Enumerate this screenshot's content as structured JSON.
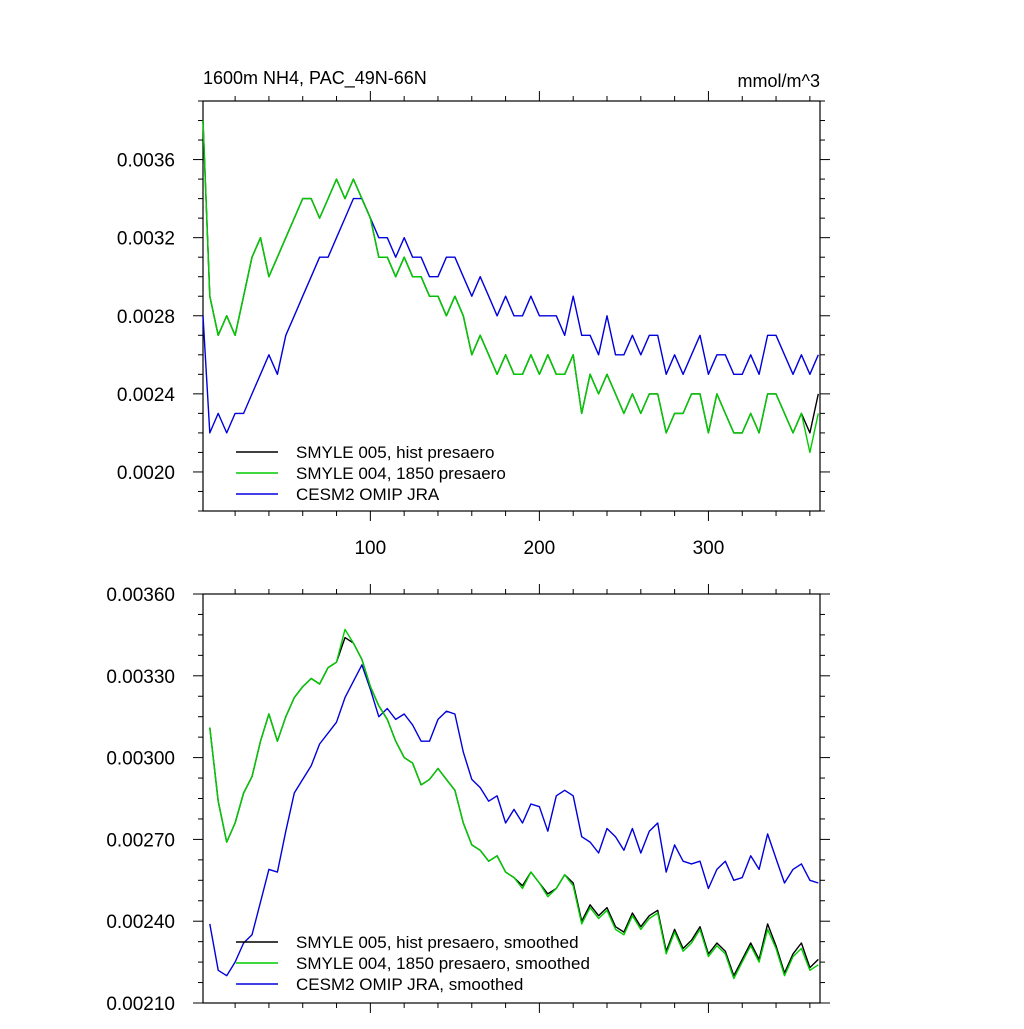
{
  "chart_data": [
    {
      "type": "line",
      "title": "1600m NH4, PAC_49N-66N",
      "units": "mmol/m^3",
      "xlabel": "",
      "ylabel": "",
      "xlim": [
        1,
        366
      ],
      "ylim": [
        0.0018,
        0.0039
      ],
      "xticks": [
        100,
        200,
        300
      ],
      "yticks": [
        0.002,
        0.0024,
        0.0028,
        0.0032,
        0.0036
      ],
      "ytick_labels": [
        "0.0020",
        "0.0024",
        "0.0028",
        "0.0032",
        "0.0036"
      ],
      "legend_position": "bottom-left",
      "series": [
        {
          "name": "SMYLE 005, hist presaero",
          "color": "#000000",
          "x": [
            1,
            5,
            10,
            15,
            20,
            25,
            30,
            35,
            40,
            45,
            50,
            55,
            60,
            65,
            70,
            75,
            80,
            85,
            90,
            95,
            100,
            105,
            110,
            115,
            120,
            125,
            130,
            135,
            140,
            145,
            150,
            155,
            160,
            165,
            170,
            175,
            180,
            185,
            190,
            195,
            200,
            205,
            210,
            215,
            220,
            225,
            230,
            235,
            240,
            245,
            250,
            255,
            260,
            265,
            270,
            275,
            280,
            285,
            290,
            295,
            300,
            305,
            310,
            315,
            320,
            325,
            330,
            335,
            340,
            345,
            350,
            355,
            360,
            365
          ],
          "y": [
            0.0038,
            0.0029,
            0.0027,
            0.0028,
            0.0027,
            0.0029,
            0.0031,
            0.0032,
            0.003,
            0.0031,
            0.0032,
            0.0033,
            0.0034,
            0.0034,
            0.0033,
            0.0034,
            0.0035,
            0.0034,
            0.0035,
            0.0034,
            0.0033,
            0.0031,
            0.0031,
            0.003,
            0.0031,
            0.003,
            0.003,
            0.0029,
            0.0029,
            0.0028,
            0.0029,
            0.0028,
            0.0026,
            0.0027,
            0.0026,
            0.0025,
            0.0026,
            0.0025,
            0.0025,
            0.0026,
            0.0025,
            0.0026,
            0.0025,
            0.0025,
            0.0026,
            0.0023,
            0.0025,
            0.0024,
            0.0025,
            0.0024,
            0.0023,
            0.0024,
            0.0023,
            0.0024,
            0.0024,
            0.0022,
            0.0023,
            0.0023,
            0.0024,
            0.0024,
            0.0022,
            0.0024,
            0.0023,
            0.0022,
            0.0022,
            0.0023,
            0.0022,
            0.0024,
            0.0024,
            0.0023,
            0.0022,
            0.0023,
            0.0022,
            0.0024
          ]
        },
        {
          "name": "SMYLE 004, 1850 presaero",
          "color": "#00cc00",
          "x": [
            1,
            5,
            10,
            15,
            20,
            25,
            30,
            35,
            40,
            45,
            50,
            55,
            60,
            65,
            70,
            75,
            80,
            85,
            90,
            95,
            100,
            105,
            110,
            115,
            120,
            125,
            130,
            135,
            140,
            145,
            150,
            155,
            160,
            165,
            170,
            175,
            180,
            185,
            190,
            195,
            200,
            205,
            210,
            215,
            220,
            225,
            230,
            235,
            240,
            245,
            250,
            255,
            260,
            265,
            270,
            275,
            280,
            285,
            290,
            295,
            300,
            305,
            310,
            315,
            320,
            325,
            330,
            335,
            340,
            345,
            350,
            355,
            360,
            365
          ],
          "y": [
            0.0038,
            0.0029,
            0.0027,
            0.0028,
            0.0027,
            0.0029,
            0.0031,
            0.0032,
            0.003,
            0.0031,
            0.0032,
            0.0033,
            0.0034,
            0.0034,
            0.0033,
            0.0034,
            0.0035,
            0.0034,
            0.0035,
            0.0034,
            0.0033,
            0.0031,
            0.0031,
            0.003,
            0.0031,
            0.003,
            0.003,
            0.0029,
            0.0029,
            0.0028,
            0.0029,
            0.0028,
            0.0026,
            0.0027,
            0.0026,
            0.0025,
            0.0026,
            0.0025,
            0.0025,
            0.0026,
            0.0025,
            0.0026,
            0.0025,
            0.0025,
            0.0026,
            0.0023,
            0.0025,
            0.0024,
            0.0025,
            0.0024,
            0.0023,
            0.0024,
            0.0023,
            0.0024,
            0.0024,
            0.0022,
            0.0023,
            0.0023,
            0.0024,
            0.0024,
            0.0022,
            0.0024,
            0.0023,
            0.0022,
            0.0022,
            0.0023,
            0.0022,
            0.0024,
            0.0024,
            0.0023,
            0.0022,
            0.0023,
            0.0021,
            0.0023
          ]
        },
        {
          "name": "CESM2 OMIP JRA",
          "color": "#0000dd",
          "x": [
            1,
            5,
            10,
            15,
            20,
            25,
            30,
            35,
            40,
            45,
            50,
            55,
            60,
            65,
            70,
            75,
            80,
            85,
            90,
            95,
            100,
            105,
            110,
            115,
            120,
            125,
            130,
            135,
            140,
            145,
            150,
            155,
            160,
            165,
            170,
            175,
            180,
            185,
            190,
            195,
            200,
            205,
            210,
            215,
            220,
            225,
            230,
            235,
            240,
            245,
            250,
            255,
            260,
            265,
            270,
            275,
            280,
            285,
            290,
            295,
            300,
            305,
            310,
            315,
            320,
            325,
            330,
            335,
            340,
            345,
            350,
            355,
            360,
            365
          ],
          "y": [
            0.0028,
            0.0022,
            0.0023,
            0.0022,
            0.0023,
            0.0023,
            0.0024,
            0.0025,
            0.0026,
            0.0025,
            0.0027,
            0.0028,
            0.0029,
            0.003,
            0.0031,
            0.0031,
            0.0032,
            0.0033,
            0.0034,
            0.0034,
            0.0033,
            0.0032,
            0.0032,
            0.0031,
            0.0032,
            0.0031,
            0.0031,
            0.003,
            0.003,
            0.0031,
            0.0031,
            0.003,
            0.0029,
            0.003,
            0.0029,
            0.0028,
            0.0029,
            0.0028,
            0.0028,
            0.0029,
            0.0028,
            0.0028,
            0.0028,
            0.0027,
            0.0029,
            0.0027,
            0.0027,
            0.0026,
            0.0028,
            0.0026,
            0.0026,
            0.0027,
            0.0026,
            0.0027,
            0.0027,
            0.0025,
            0.0026,
            0.0025,
            0.0026,
            0.0027,
            0.0025,
            0.0026,
            0.0026,
            0.0025,
            0.0025,
            0.0026,
            0.0025,
            0.0027,
            0.0027,
            0.0026,
            0.0025,
            0.0026,
            0.0025,
            0.0026
          ]
        }
      ]
    },
    {
      "type": "line",
      "title": "",
      "xlabel": "",
      "ylabel": "",
      "xlim": [
        1,
        366
      ],
      "ylim": [
        0.0021,
        0.0036
      ],
      "xticks": [
        100,
        200,
        300
      ],
      "yticks": [
        0.0021,
        0.0024,
        0.0027,
        0.003,
        0.0033,
        0.0036
      ],
      "ytick_labels": [
        "0.00210",
        "0.00240",
        "0.00270",
        "0.00300",
        "0.00330",
        "0.00360"
      ],
      "legend_position": "bottom-left",
      "series": [
        {
          "name": "SMYLE 005, hist presaero, smoothed",
          "color": "#000000",
          "x": [
            5,
            10,
            15,
            20,
            25,
            30,
            35,
            40,
            45,
            50,
            55,
            60,
            65,
            70,
            75,
            80,
            85,
            90,
            95,
            100,
            105,
            110,
            115,
            120,
            125,
            130,
            135,
            140,
            145,
            150,
            155,
            160,
            165,
            170,
            175,
            180,
            185,
            190,
            195,
            200,
            205,
            210,
            215,
            220,
            225,
            230,
            235,
            240,
            245,
            250,
            255,
            260,
            265,
            270,
            275,
            280,
            285,
            290,
            295,
            300,
            305,
            310,
            315,
            320,
            325,
            330,
            335,
            340,
            345,
            350,
            355,
            360,
            365
          ],
          "y": [
            0.00311,
            0.00284,
            0.00269,
            0.00276,
            0.00287,
            0.00293,
            0.00306,
            0.00316,
            0.00306,
            0.00315,
            0.00322,
            0.00326,
            0.00329,
            0.00327,
            0.00333,
            0.00335,
            0.00344,
            0.00342,
            0.00336,
            0.00326,
            0.00319,
            0.00314,
            0.00306,
            0.003,
            0.00298,
            0.0029,
            0.00292,
            0.00296,
            0.00292,
            0.00288,
            0.00276,
            0.00268,
            0.00266,
            0.00262,
            0.00264,
            0.00258,
            0.00256,
            0.00253,
            0.00258,
            0.00254,
            0.0025,
            0.00252,
            0.00257,
            0.00254,
            0.0024,
            0.00246,
            0.00242,
            0.00245,
            0.00238,
            0.00236,
            0.00243,
            0.00238,
            0.00242,
            0.00244,
            0.00229,
            0.00237,
            0.0023,
            0.00233,
            0.00238,
            0.00228,
            0.00232,
            0.00229,
            0.0022,
            0.00226,
            0.00232,
            0.00226,
            0.00239,
            0.00231,
            0.00221,
            0.00228,
            0.00232,
            0.00223,
            0.00226
          ]
        },
        {
          "name": "SMYLE 004, 1850 presaero, smoothed",
          "color": "#00cc00",
          "x": [
            5,
            10,
            15,
            20,
            25,
            30,
            35,
            40,
            45,
            50,
            55,
            60,
            65,
            70,
            75,
            80,
            85,
            90,
            95,
            100,
            105,
            110,
            115,
            120,
            125,
            130,
            135,
            140,
            145,
            150,
            155,
            160,
            165,
            170,
            175,
            180,
            185,
            190,
            195,
            200,
            205,
            210,
            215,
            220,
            225,
            230,
            235,
            240,
            245,
            250,
            255,
            260,
            265,
            270,
            275,
            280,
            285,
            290,
            295,
            300,
            305,
            310,
            315,
            320,
            325,
            330,
            335,
            340,
            345,
            350,
            355,
            360,
            365
          ],
          "y": [
            0.00311,
            0.00284,
            0.00269,
            0.00276,
            0.00287,
            0.00293,
            0.00306,
            0.00316,
            0.00306,
            0.00315,
            0.00322,
            0.00326,
            0.00329,
            0.00327,
            0.00333,
            0.00335,
            0.00347,
            0.00342,
            0.00336,
            0.00326,
            0.00319,
            0.00314,
            0.00306,
            0.003,
            0.00298,
            0.0029,
            0.00292,
            0.00296,
            0.00292,
            0.00288,
            0.00276,
            0.00268,
            0.00266,
            0.00262,
            0.00264,
            0.00258,
            0.00256,
            0.00252,
            0.00258,
            0.00254,
            0.00249,
            0.00252,
            0.00257,
            0.00253,
            0.00239,
            0.00245,
            0.00241,
            0.00244,
            0.00237,
            0.00235,
            0.00242,
            0.00237,
            0.00241,
            0.00243,
            0.00228,
            0.00236,
            0.00229,
            0.00232,
            0.00237,
            0.00227,
            0.00231,
            0.00228,
            0.00219,
            0.00225,
            0.00231,
            0.00225,
            0.00237,
            0.0023,
            0.0022,
            0.00227,
            0.0023,
            0.00222,
            0.00224
          ]
        },
        {
          "name": "CESM2 OMIP JRA, smoothed",
          "color": "#0000dd",
          "x": [
            5,
            10,
            15,
            20,
            25,
            30,
            35,
            40,
            45,
            50,
            55,
            60,
            65,
            70,
            75,
            80,
            85,
            90,
            95,
            100,
            105,
            110,
            115,
            120,
            125,
            130,
            135,
            140,
            145,
            150,
            155,
            160,
            165,
            170,
            175,
            180,
            185,
            190,
            195,
            200,
            205,
            210,
            215,
            220,
            225,
            230,
            235,
            240,
            245,
            250,
            255,
            260,
            265,
            270,
            275,
            280,
            285,
            290,
            295,
            300,
            305,
            310,
            315,
            320,
            325,
            330,
            335,
            340,
            345,
            350,
            355,
            360,
            365
          ],
          "y": [
            0.00239,
            0.00222,
            0.0022,
            0.00225,
            0.00232,
            0.00235,
            0.00247,
            0.00259,
            0.00258,
            0.00273,
            0.00287,
            0.00292,
            0.00297,
            0.00305,
            0.00309,
            0.00313,
            0.00322,
            0.00328,
            0.00334,
            0.00325,
            0.00315,
            0.00318,
            0.00314,
            0.00316,
            0.00312,
            0.00306,
            0.00306,
            0.00314,
            0.00317,
            0.00316,
            0.00302,
            0.00292,
            0.00289,
            0.00284,
            0.00286,
            0.00276,
            0.00281,
            0.00276,
            0.00283,
            0.00282,
            0.00273,
            0.00286,
            0.00288,
            0.00286,
            0.00271,
            0.00269,
            0.00265,
            0.00274,
            0.00271,
            0.00266,
            0.00274,
            0.00265,
            0.00273,
            0.00276,
            0.00258,
            0.00268,
            0.00262,
            0.00261,
            0.00262,
            0.00252,
            0.00259,
            0.00262,
            0.00255,
            0.00256,
            0.00264,
            0.00259,
            0.00272,
            0.00263,
            0.00254,
            0.00259,
            0.00261,
            0.00255,
            0.00254
          ]
        }
      ]
    }
  ]
}
